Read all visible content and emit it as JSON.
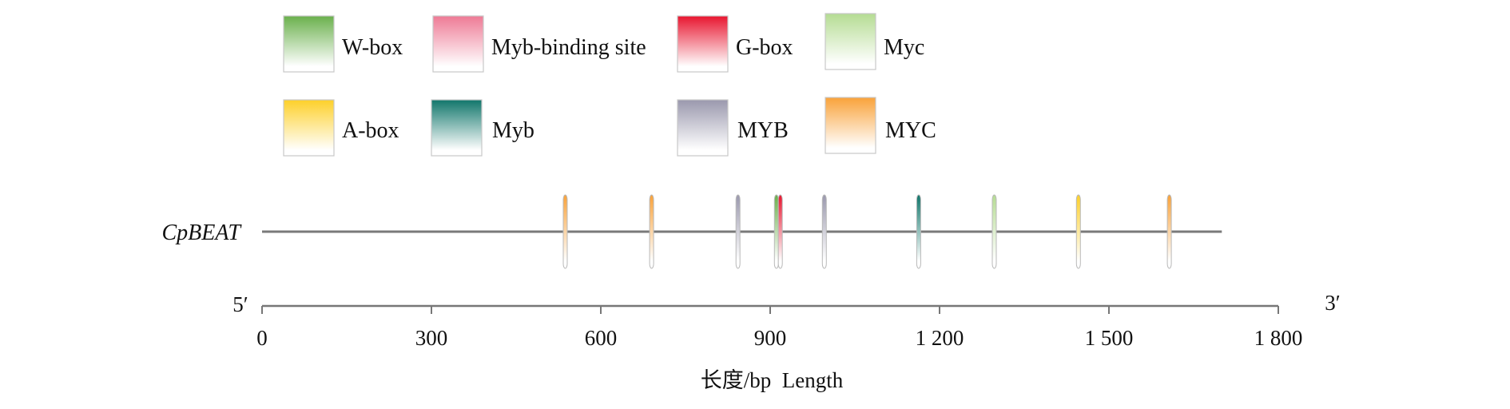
{
  "legend": [
    {
      "label": "W-box",
      "color": "#6ab04c"
    },
    {
      "label": "Myb-binding site",
      "color": "#ee7a95"
    },
    {
      "label": "G-box",
      "color": "#e8152f"
    },
    {
      "label": "Myc",
      "color": "#b5dc93"
    },
    {
      "label": "A-box",
      "color": "#fdd02a"
    },
    {
      "label": "Myb",
      "color": "#11766b"
    },
    {
      "label": "MYB",
      "color": "#9a98ad"
    },
    {
      "label": "MYC",
      "color": "#f9a23a"
    }
  ],
  "chart_data": {
    "type": "diagram",
    "gene": "CpBEAT",
    "sequence_length": 1700,
    "end_labels": {
      "left": "5′",
      "right": "3′"
    },
    "xlabel": "长度/bp  Length",
    "xlim": [
      0,
      1800
    ],
    "ticks": [
      {
        "value": 0,
        "label": "0"
      },
      {
        "value": 300,
        "label": "300"
      },
      {
        "value": 600,
        "label": "600"
      },
      {
        "value": 900,
        "label": "900"
      },
      {
        "value": 1200,
        "label": "1 200"
      },
      {
        "value": 1500,
        "label": "1 500"
      },
      {
        "value": 1800,
        "label": "1 800"
      }
    ],
    "elements": [
      {
        "type": "MYC",
        "position": 537
      },
      {
        "type": "MYC",
        "position": 690
      },
      {
        "type": "MYB",
        "position": 843
      },
      {
        "type": "W-box",
        "position": 911
      },
      {
        "type": "G-box",
        "position": 918
      },
      {
        "type": "MYB",
        "position": 996
      },
      {
        "type": "Myb",
        "position": 1163
      },
      {
        "type": "Myc",
        "position": 1297
      },
      {
        "type": "A-box",
        "position": 1446
      },
      {
        "type": "MYC",
        "position": 1607
      }
    ]
  }
}
